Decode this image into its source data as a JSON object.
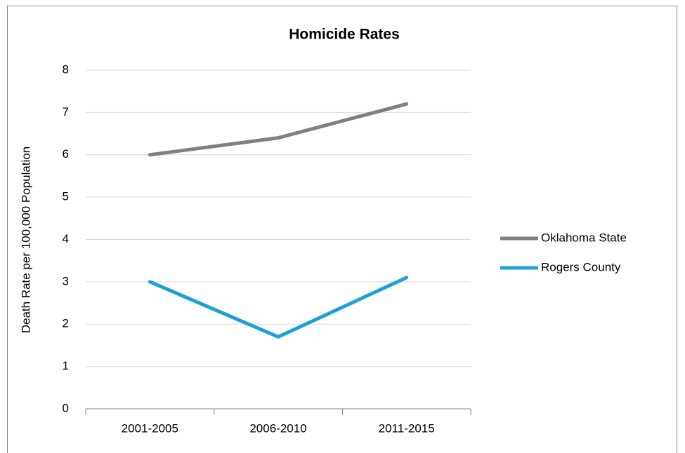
{
  "chart_data": {
    "type": "line",
    "title": "Homicide Rates",
    "y_axis_label": "Death Rate per 100,000 Population",
    "categories": [
      "2001-2005",
      "2006-2010",
      "2011-2015"
    ],
    "series": [
      {
        "name": "Oklahoma State",
        "color": "#808080",
        "values": [
          6.0,
          6.4,
          7.2
        ]
      },
      {
        "name": "Rogers County",
        "color": "#1e9fd6",
        "values": [
          3.0,
          1.7,
          3.1
        ]
      }
    ],
    "ylim": [
      0,
      8
    ],
    "yticks": [
      0,
      1,
      2,
      3,
      4,
      5,
      6,
      7,
      8
    ],
    "grid": true,
    "legend": "right"
  }
}
